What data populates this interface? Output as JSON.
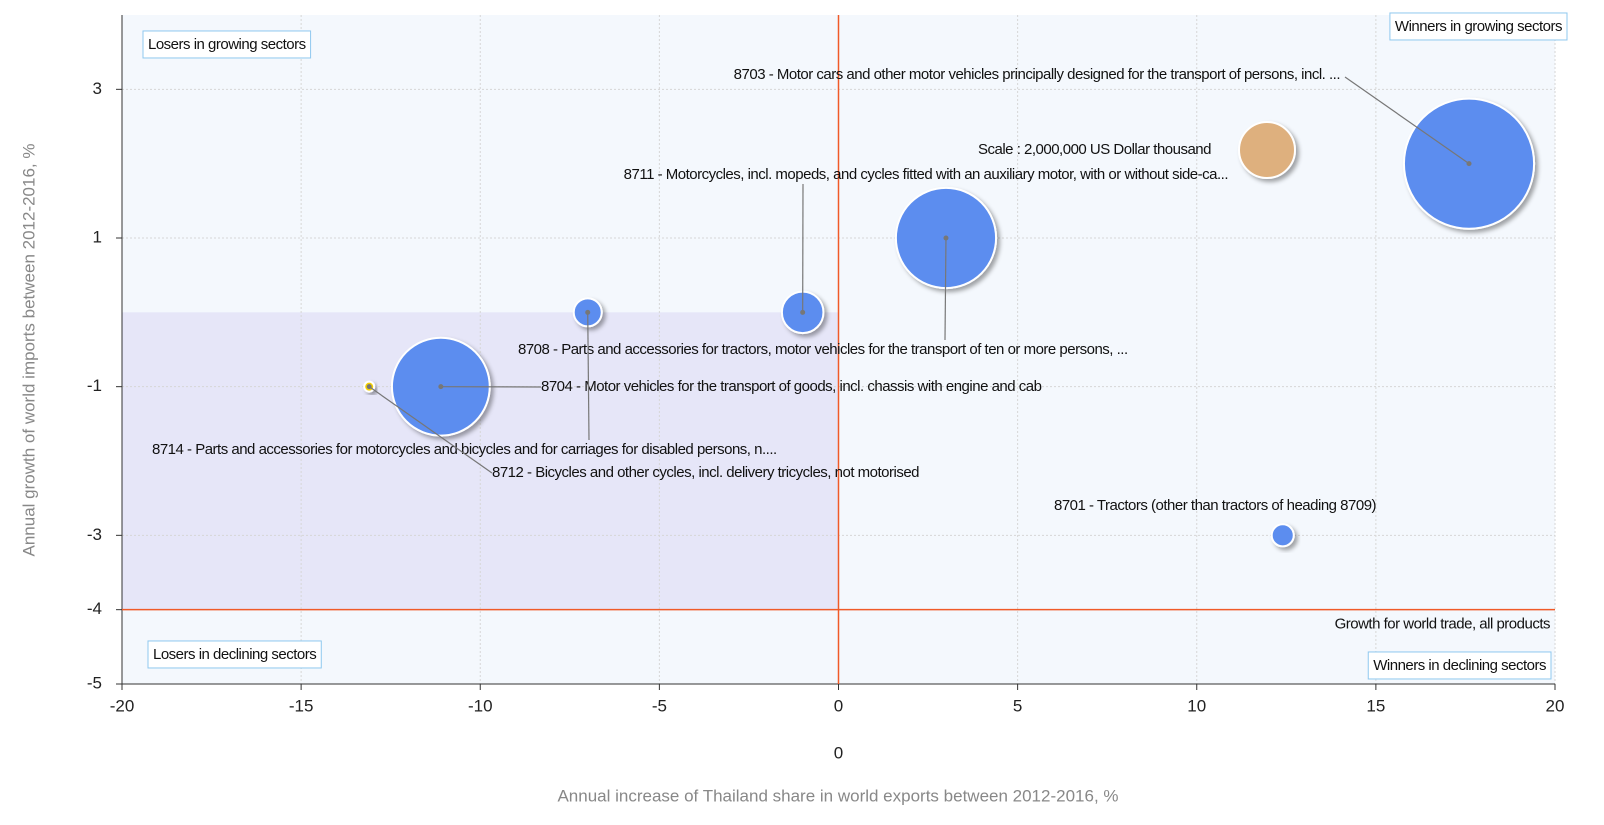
{
  "chart_data": {
    "type": "bubble",
    "xlabel": "Annual increase of Thailand share in world exports between 2012-2016, %",
    "ylabel": "Annual growth of world imports between 2012-2016, %",
    "xlim": [
      -20,
      20
    ],
    "ylim": [
      -5,
      4
    ],
    "xticks": [
      -20,
      -15,
      -10,
      -5,
      0,
      5,
      10,
      15,
      20
    ],
    "yticks": [
      -5,
      -4,
      -3,
      -1,
      1,
      3
    ],
    "grid": true,
    "reference_lines": {
      "x": 0,
      "y": -4,
      "color": "#f05a28",
      "x_label": "0",
      "y_label": "Growth for world trade, all products"
    },
    "quadrant_labels": [
      "Losers in growing sectors",
      "Winners in growing sectors",
      "Losers in declining sectors",
      "Winners in declining sectors"
    ],
    "scale": {
      "label": "Scale : 2,000,000 US Dollar thousand",
      "value": 2000000,
      "color": "#deb07e"
    },
    "series": [
      {
        "name": "8703 - Motor cars and other motor vehicles principally designed for the transport of persons, incl. ...",
        "color": "#5b8def",
        "x": [
          17.6
        ],
        "values": [
          2.0
        ],
        "sizes": [
          10800000
        ]
      },
      {
        "name": "8711 - Motorcycles, incl. mopeds, and cycles fitted with an auxiliary motor, with or without side-ca...",
        "color": "#5b8def",
        "x": [
          -1.0
        ],
        "values": [
          0.0
        ],
        "sizes": [
          1100000
        ]
      },
      {
        "name": "8708 - Parts and accessories for tractors, motor vehicles for the transport of ten or more persons, ...",
        "color": "#5b8def",
        "x": [
          3.0
        ],
        "values": [
          1.0
        ],
        "sizes": [
          6400000
        ]
      },
      {
        "name": "8704 - Motor vehicles for the transport of goods, incl. chassis with engine and cab",
        "color": "#5b8def",
        "x": [
          -11.1
        ],
        "values": [
          -1.0
        ],
        "sizes": [
          6100000
        ]
      },
      {
        "name": "8714 - Parts and accessories for motorcycles and bicycles and for carriages for disabled persons, n....",
        "color": "#5b8def",
        "x": [
          -7.0
        ],
        "values": [
          0.0
        ],
        "sizes": [
          500000
        ]
      },
      {
        "name": "8712 - Bicycles and other cycles, incl. delivery tricycles, not motorised",
        "color": "#f5d000",
        "x": [
          -13.1
        ],
        "values": [
          -1.0
        ],
        "sizes": [
          64000
        ]
      },
      {
        "name": "8701 - Tractors (other than tractors of heading 8709)",
        "color": "#5b8def",
        "x": [
          12.4
        ],
        "values": [
          -3.0
        ],
        "sizes": [
          310000
        ]
      }
    ]
  }
}
